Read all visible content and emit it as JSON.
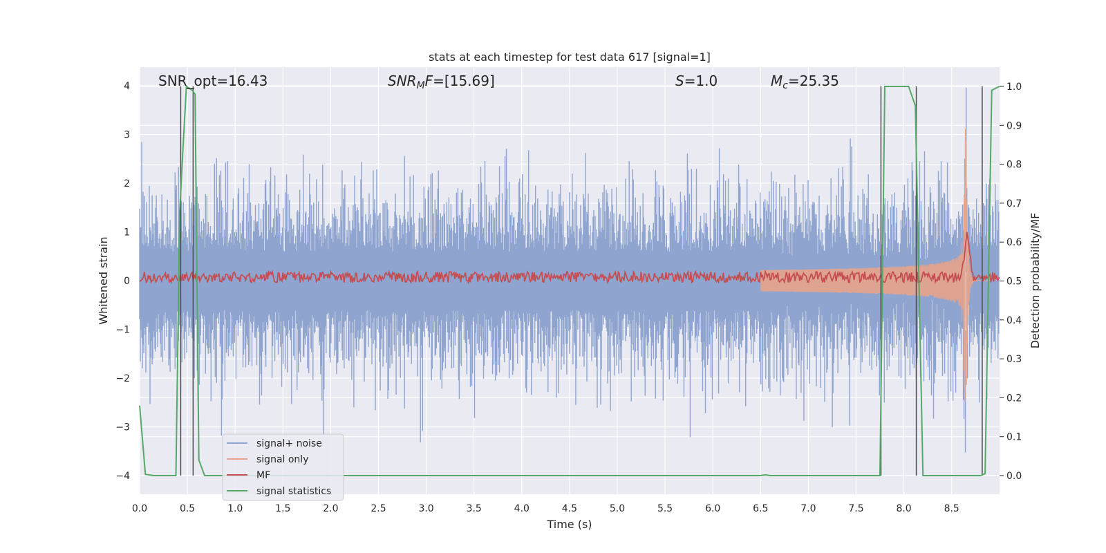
{
  "chart_data": {
    "type": "line",
    "title": "stats at each timestep for test data 617 [signal=1]",
    "xlabel": "Time (s)",
    "ylabel": "Whitened strain",
    "y2label": "Detection probability/MF",
    "xlim": [
      0.0,
      9.0
    ],
    "ylim": [
      -4.4,
      4.4
    ],
    "y2lim": [
      -0.045,
      1.045
    ],
    "xticks": [
      "0.0",
      "0.5",
      "1.0",
      "1.5",
      "2.0",
      "2.5",
      "3.0",
      "3.5",
      "4.0",
      "4.5",
      "5.0",
      "5.5",
      "6.0",
      "6.5",
      "7.0",
      "7.5",
      "8.0",
      "8.5"
    ],
    "yticks": [
      "−4",
      "−3",
      "−2",
      "−1",
      "0",
      "1",
      "2",
      "3",
      "4"
    ],
    "y2ticks": [
      "0.0",
      "0.1",
      "0.2",
      "0.3",
      "0.4",
      "0.5",
      "0.6",
      "0.7",
      "0.8",
      "0.9",
      "1.0"
    ],
    "grid": true,
    "legend_position": "lower-left",
    "annotations": {
      "snr_opt": "SNR_opt=16.43",
      "snr_mf_prefix": "SNR",
      "snr_mf_sub": "M",
      "snr_mf_suffix": "F=[15.69]",
      "s_italic": "S",
      "s_value": "=1.0",
      "mc_italic": "M",
      "mc_sub": "c",
      "mc_value": "=25.35"
    },
    "series": [
      {
        "name": "signal+ noise",
        "color": "#8fa5cf",
        "description_type": "noise_band",
        "typical_range": [
          -1.6,
          1.6
        ],
        "peak_range": [
          -3.5,
          3.3
        ]
      },
      {
        "name": "signal only",
        "color": "#e8a38a",
        "description_type": "chirp",
        "start": 6.5,
        "merger": 8.65,
        "peak_amplitude": 3.3
      },
      {
        "name": "MF",
        "color": "#c44e52",
        "axis": "y2",
        "baseline": 0.51,
        "peak_x": 8.66,
        "peak_value": 0.62
      },
      {
        "name": "signal statistics",
        "color": "#55a868",
        "axis": "y2",
        "points": [
          [
            0.0,
            0.18
          ],
          [
            0.06,
            0.003
          ],
          [
            0.15,
            0.0
          ],
          [
            0.38,
            0.0
          ],
          [
            0.42,
            0.68
          ],
          [
            0.46,
            0.87
          ],
          [
            0.49,
            1.0
          ],
          [
            0.55,
            0.99
          ],
          [
            0.58,
            0.98
          ],
          [
            0.62,
            0.04
          ],
          [
            0.68,
            0.0
          ],
          [
            6.5,
            0.0
          ],
          [
            6.55,
            0.002
          ],
          [
            6.6,
            0.0
          ],
          [
            7.75,
            0.0
          ],
          [
            7.8,
            1.0
          ],
          [
            8.05,
            1.0
          ],
          [
            8.12,
            0.95
          ],
          [
            8.2,
            0.0
          ],
          [
            8.8,
            0.0
          ],
          [
            8.85,
            0.005
          ],
          [
            8.92,
            0.99
          ],
          [
            9.0,
            1.0
          ]
        ]
      }
    ],
    "vlines": [
      0.43,
      0.56,
      7.76,
      8.13,
      8.82
    ]
  },
  "legend": [
    {
      "label": "signal+ noise",
      "color": "#8fa5cf"
    },
    {
      "label": "signal only",
      "color": "#e8a38a"
    },
    {
      "label": "MF",
      "color": "#c44e52"
    },
    {
      "label": "signal statistics",
      "color": "#55a868"
    }
  ]
}
